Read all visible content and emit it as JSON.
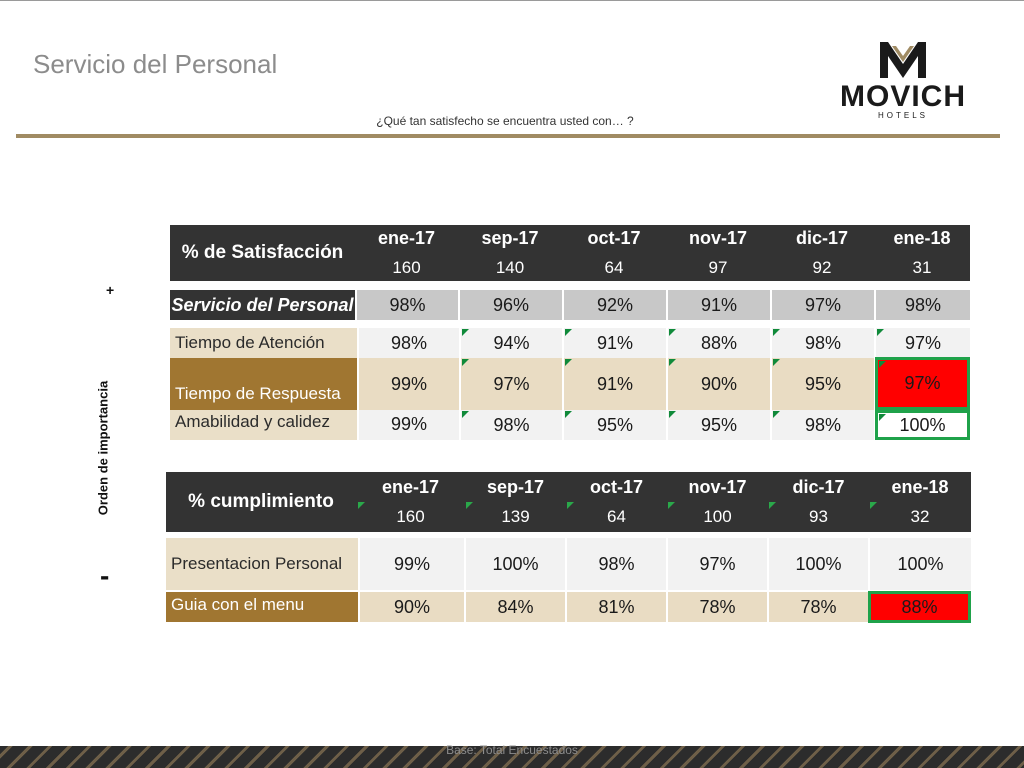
{
  "page": {
    "title": "Servicio del Personal",
    "subtitle": "¿Qué tan satisfecho se encuentra usted con… ?",
    "plus": "+",
    "minus": "-",
    "axis_label": "Orden de importancia",
    "footer": "Base: Total Encuestados"
  },
  "logo": {
    "name": "movich-logo-icon",
    "word": "MOVICH",
    "sub": "HOTELS"
  },
  "colors": {
    "accent_rule": "#a08b63",
    "header_dark": "#333333",
    "highlight_red": "#ff0000",
    "highlight_border_green": "#1fa24a",
    "label_brown": "#a07631"
  },
  "satisfaction": {
    "title": "% de Satisfacción",
    "columns": [
      {
        "month": "ene-17",
        "n": "160"
      },
      {
        "month": "sep-17",
        "n": "140"
      },
      {
        "month": "oct-17",
        "n": "64"
      },
      {
        "month": "nov-17",
        "n": "97"
      },
      {
        "month": "dic-17",
        "n": "92"
      },
      {
        "month": "ene-18",
        "n": "31"
      }
    ],
    "summary": {
      "label": "Servicio del Personal",
      "values": [
        "98%",
        "96%",
        "92%",
        "91%",
        "97%",
        "98%"
      ]
    },
    "rows": [
      {
        "label": "Tiempo de Atención",
        "values": [
          "98%",
          "94%",
          "91%",
          "88%",
          "98%",
          "97%"
        ]
      },
      {
        "label": "Tiempo de Respuesta",
        "values": [
          "99%",
          "97%",
          "91%",
          "90%",
          "95%",
          "97%"
        ]
      },
      {
        "label": "Amabilidad y calidez",
        "values": [
          "99%",
          "98%",
          "95%",
          "95%",
          "98%",
          "100%"
        ]
      }
    ]
  },
  "compliance": {
    "title": "% cumplimiento",
    "columns": [
      {
        "month": "ene-17",
        "n": "160"
      },
      {
        "month": "sep-17",
        "n": "139"
      },
      {
        "month": "oct-17",
        "n": "64"
      },
      {
        "month": "nov-17",
        "n": "100"
      },
      {
        "month": "dic-17",
        "n": "93"
      },
      {
        "month": "ene-18",
        "n": "32"
      }
    ],
    "rows": [
      {
        "label": "Presentacion Personal",
        "values": [
          "99%",
          "100%",
          "98%",
          "97%",
          "100%",
          "100%"
        ]
      },
      {
        "label": "Guia con el menu",
        "values": [
          "90%",
          "84%",
          "81%",
          "78%",
          "78%",
          "88%"
        ]
      }
    ]
  }
}
